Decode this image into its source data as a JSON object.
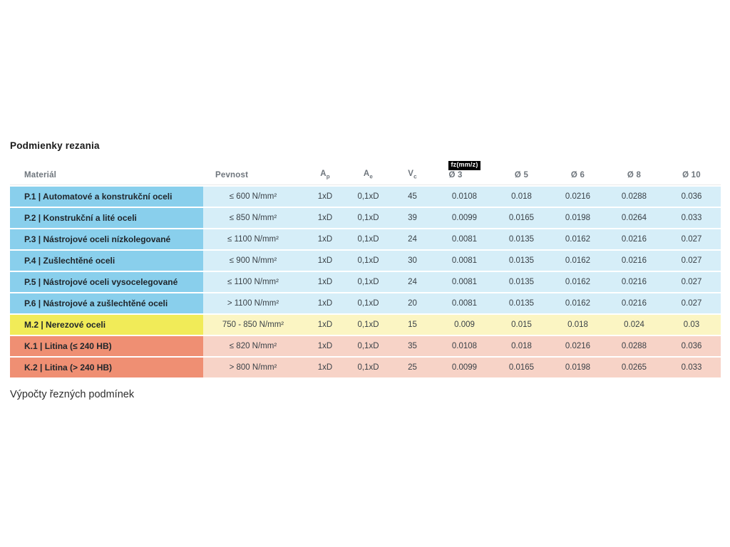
{
  "page": {
    "title": "Podmienky rezania",
    "footer": "Výpočty řezných podmínek"
  },
  "colors": {
    "blue_dark": "#89cfec",
    "blue_light": "#d6eef8",
    "yellow_dark": "#f1eb58",
    "yellow_light": "#fbf5c3",
    "red_dark": "#ef8f73",
    "red_light": "#f7d3c7",
    "fz_tag_bg": "#000000",
    "fz_tag_text": "#ffffff"
  },
  "table": {
    "feed_tag": "fz(mm/z)",
    "headers": [
      {
        "label": "Materiál",
        "align": "left"
      },
      {
        "label": "Pevnost",
        "align": "left2"
      },
      {
        "label": "A",
        "sub": "p"
      },
      {
        "label": "A",
        "sub": "e"
      },
      {
        "label": "V",
        "sub": "c"
      },
      {
        "label": "Ø 3",
        "show_tag": true
      },
      {
        "label": "Ø 5"
      },
      {
        "label": "Ø 6"
      },
      {
        "label": "Ø 8"
      },
      {
        "label": "Ø 10"
      }
    ],
    "rows": [
      {
        "theme": "blue",
        "material": "P.1 | Automatové a konstrukční oceli",
        "pevnost": "≤ 600 N/mm²",
        "ap": "1xD",
        "ae": "0,1xD",
        "vc": "45",
        "fz": [
          "0.0108",
          "0.018",
          "0.0216",
          "0.0288",
          "0.036"
        ]
      },
      {
        "theme": "blue",
        "material": "P.2 | Konstrukční a lité oceli",
        "pevnost": "≤ 850 N/mm²",
        "ap": "1xD",
        "ae": "0,1xD",
        "vc": "39",
        "fz": [
          "0.0099",
          "0.0165",
          "0.0198",
          "0.0264",
          "0.033"
        ]
      },
      {
        "theme": "blue",
        "material": "P.3 | Nástrojové oceli nízkolegované",
        "pevnost": "≤ 1100 N/mm²",
        "ap": "1xD",
        "ae": "0,1xD",
        "vc": "24",
        "fz": [
          "0.0081",
          "0.0135",
          "0.0162",
          "0.0216",
          "0.027"
        ]
      },
      {
        "theme": "blue",
        "material": "P.4 | Zušlechtěné oceli",
        "pevnost": "≤ 900 N/mm²",
        "ap": "1xD",
        "ae": "0,1xD",
        "vc": "30",
        "fz": [
          "0.0081",
          "0.0135",
          "0.0162",
          "0.0216",
          "0.027"
        ]
      },
      {
        "theme": "blue",
        "material": "P.5 | Nástrojové oceli vysocelegované",
        "pevnost": "≤ 1100 N/mm²",
        "ap": "1xD",
        "ae": "0,1xD",
        "vc": "24",
        "fz": [
          "0.0081",
          "0.0135",
          "0.0162",
          "0.0216",
          "0.027"
        ]
      },
      {
        "theme": "blue",
        "material": "P.6 | Nástrojové a zušlechtěné oceli",
        "pevnost": "> 1100 N/mm²",
        "ap": "1xD",
        "ae": "0,1xD",
        "vc": "20",
        "fz": [
          "0.0081",
          "0.0135",
          "0.0162",
          "0.0216",
          "0.027"
        ]
      },
      {
        "theme": "yellow",
        "material": "M.2 | Nerezové oceli",
        "pevnost": "750 - 850 N/mm²",
        "ap": "1xD",
        "ae": "0,1xD",
        "vc": "15",
        "fz": [
          "0.009",
          "0.015",
          "0.018",
          "0.024",
          "0.03"
        ]
      },
      {
        "theme": "red",
        "material": "K.1 | Litina (≤ 240 HB)",
        "pevnost": "≤ 820 N/mm²",
        "ap": "1xD",
        "ae": "0,1xD",
        "vc": "35",
        "fz": [
          "0.0108",
          "0.018",
          "0.0216",
          "0.0288",
          "0.036"
        ]
      },
      {
        "theme": "red",
        "material": "K.2 | Litina (> 240 HB)",
        "pevnost": "> 800 N/mm²",
        "ap": "1xD",
        "ae": "0,1xD",
        "vc": "25",
        "fz": [
          "0.0099",
          "0.0165",
          "0.0198",
          "0.0265",
          "0.033"
        ]
      }
    ]
  }
}
